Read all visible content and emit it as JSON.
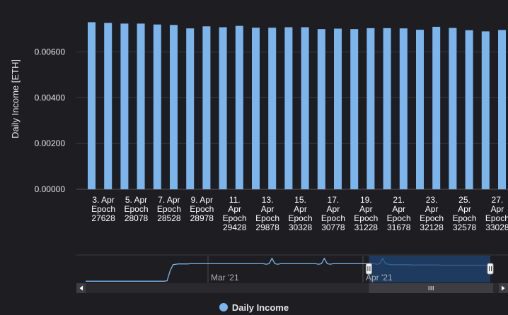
{
  "chart_data": {
    "type": "bar",
    "ylabel": "Daily Income [ETH]",
    "yticks": [
      "0.00000",
      "0.00200",
      "0.00400",
      "0.00600"
    ],
    "ylim": [
      0,
      0.0079
    ],
    "grid": true,
    "legend_position": "bottom-center",
    "series": [
      {
        "name": "Daily Income",
        "color": "#7cb5ec",
        "values": [
          0.0073,
          0.00727,
          0.00724,
          0.00724,
          0.0072,
          0.00718,
          0.00703,
          0.00712,
          0.00708,
          0.00714,
          0.00706,
          0.00706,
          0.00708,
          0.00708,
          0.007,
          0.00702,
          0.007,
          0.00704,
          0.00704,
          0.00703,
          0.00697,
          0.0071,
          0.00705,
          0.00695,
          0.0069,
          0.00696
        ]
      }
    ],
    "x_labels": [
      {
        "lines": [
          "3. Apr",
          "Epoch",
          "27628"
        ]
      },
      {
        "lines": [
          "5. Apr",
          "Epoch",
          "28078"
        ]
      },
      {
        "lines": [
          "7. Apr",
          "Epoch",
          "28528"
        ]
      },
      {
        "lines": [
          "9. Apr",
          "Epoch",
          "28978"
        ]
      },
      {
        "lines": [
          "11.",
          "Apr",
          "Epoch",
          "29428"
        ]
      },
      {
        "lines": [
          "13.",
          "Apr",
          "Epoch",
          "29878"
        ]
      },
      {
        "lines": [
          "15.",
          "Apr",
          "Epoch",
          "30328"
        ]
      },
      {
        "lines": [
          "17.",
          "Apr",
          "Epoch",
          "30778"
        ]
      },
      {
        "lines": [
          "19.",
          "Apr",
          "Epoch",
          "31228"
        ]
      },
      {
        "lines": [
          "21.",
          "Apr",
          "Epoch",
          "31678"
        ]
      },
      {
        "lines": [
          "23.",
          "Apr",
          "Epoch",
          "32128"
        ]
      },
      {
        "lines": [
          "25.",
          "Apr",
          "Epoch",
          "32578"
        ]
      },
      {
        "lines": [
          "27.",
          "Apr",
          "Epoch",
          "33028"
        ]
      }
    ]
  },
  "navigator": {
    "labels": [
      "Mar '21",
      "Apr '21"
    ],
    "selection_range": [
      0.7,
      1.0
    ],
    "series": [
      0.05,
      0.05,
      0.05,
      0.05,
      0.05,
      0.05,
      0.05,
      0.05,
      0.05,
      0.05,
      0.05,
      0.05,
      0.05,
      0.05,
      0.05,
      0.05,
      0.05,
      0.05,
      0.05,
      0.05,
      0.05,
      0.05,
      0.05,
      0.05,
      0.05,
      0.05,
      0.05,
      0.05,
      0.07,
      0.45,
      0.7,
      0.72,
      0.73,
      0.73,
      0.73,
      0.73,
      0.74,
      0.74,
      0.74,
      0.74,
      0.74,
      0.74,
      0.74,
      0.74,
      0.74,
      0.74,
      0.74,
      0.74,
      0.74,
      0.74,
      0.74,
      0.74,
      0.74,
      0.74,
      0.74,
      0.74,
      0.74,
      0.74,
      0.74,
      0.74,
      0.74,
      0.74,
      0.72,
      0.74,
      0.95,
      0.74,
      0.72,
      0.74,
      0.74,
      0.74,
      0.74,
      0.74,
      0.74,
      0.74,
      0.74,
      0.74,
      0.74,
      0.74,
      0.74,
      0.74,
      0.72,
      0.74,
      0.95,
      0.74,
      0.72,
      0.74,
      0.74,
      0.74,
      0.74,
      0.74,
      0.74,
      0.74,
      0.74,
      0.74,
      0.74,
      0.74,
      0.74,
      0.74,
      0.74,
      0.74,
      0.72,
      0.74,
      0.95,
      0.74,
      0.72,
      0.7,
      0.7,
      0.7,
      0.7,
      0.7,
      0.7,
      0.7,
      0.69,
      0.69,
      0.69,
      0.69,
      0.69,
      0.69,
      0.69,
      0.69,
      0.69,
      0.69,
      0.68,
      0.68,
      0.68,
      0.68,
      0.68,
      0.68,
      0.68,
      0.68,
      0.68,
      0.68,
      0.68,
      0.68,
      0.68,
      0.68,
      0.68,
      0.68,
      0.68,
      0.68
    ]
  },
  "legend": {
    "label": "Daily Income"
  }
}
